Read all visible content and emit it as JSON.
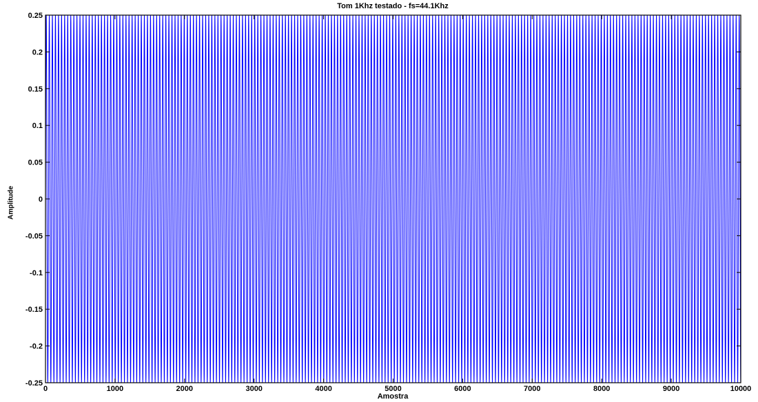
{
  "chart_data": {
    "type": "line",
    "title": "Tom 1Khz testado - fs=44.1Khz",
    "xlabel": "Amostra",
    "ylabel": "Amplitude",
    "xlim": [
      0,
      10000
    ],
    "ylim": [
      -0.25,
      0.25
    ],
    "x_ticks": [
      "0",
      "1000",
      "2000",
      "3000",
      "4000",
      "5000",
      "6000",
      "7000",
      "8000",
      "9000",
      "10000"
    ],
    "y_ticks": [
      "-0.25",
      "-0.2",
      "-0.15",
      "-0.1",
      "-0.05",
      "0",
      "0.05",
      "0.1",
      "0.15",
      "0.2",
      "0.25"
    ],
    "grid": false,
    "series": [
      {
        "color": "#0000ff",
        "signal": {
          "waveform": "sine",
          "amplitude": 0.25,
          "frequency_hz": 1000,
          "sample_rate_hz": 44100,
          "n_samples": 10000
        }
      }
    ]
  }
}
